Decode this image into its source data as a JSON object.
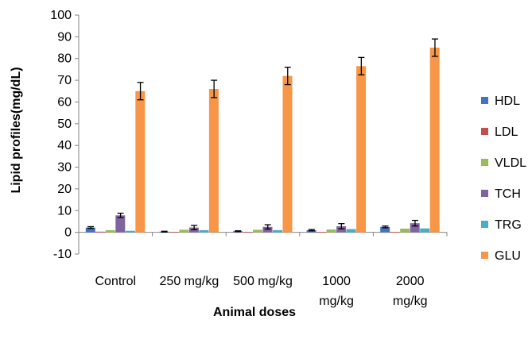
{
  "chart_data": {
    "type": "bar",
    "title": "",
    "xlabel": "Animal doses",
    "ylabel": "Lipid profiles(mg/dL)",
    "ylim": [
      -10,
      100
    ],
    "yticks": [
      -10,
      0,
      10,
      20,
      30,
      40,
      50,
      60,
      70,
      80,
      90,
      100
    ],
    "grid": false,
    "legend_position": "right",
    "categories": [
      "Control",
      "250 mg/kg",
      "500 mg/kg",
      "1000 mg/kg",
      "2000 mg/kg"
    ],
    "category_labels": [
      [
        "Control"
      ],
      [
        "250 mg/kg"
      ],
      [
        "500 mg/kg"
      ],
      [
        "1000",
        "mg/kg"
      ],
      [
        "2000",
        "mg/kg"
      ]
    ],
    "series": [
      {
        "name": "HDL",
        "color": "#4472C4",
        "values": [
          2.2,
          0.3,
          0.5,
          1.0,
          2.5
        ],
        "errors": [
          0.4,
          0.2,
          0.2,
          0.3,
          0.4
        ]
      },
      {
        "name": "LDL",
        "color": "#C0504D",
        "values": [
          0.3,
          0.2,
          0.2,
          0.2,
          0.2
        ],
        "errors": [
          0,
          0,
          0,
          0,
          0
        ]
      },
      {
        "name": "VLDL",
        "color": "#9BBB59",
        "values": [
          1.0,
          1.2,
          1.2,
          1.3,
          1.7
        ],
        "errors": [
          0,
          0,
          0,
          0,
          0
        ]
      },
      {
        "name": "TCH",
        "color": "#8064A2",
        "values": [
          7.8,
          2.2,
          2.5,
          2.8,
          4.2
        ],
        "errors": [
          1.0,
          1.0,
          1.0,
          1.2,
          1.3
        ]
      },
      {
        "name": "TRG",
        "color": "#4BACC6",
        "values": [
          0.7,
          1.0,
          1.0,
          1.5,
          1.8
        ],
        "errors": [
          0,
          0,
          0,
          0,
          0
        ]
      },
      {
        "name": "GLU",
        "color": "#F79646",
        "values": [
          65,
          66,
          72,
          76.5,
          85
        ],
        "errors": [
          4,
          4,
          4,
          4,
          4
        ]
      }
    ]
  }
}
